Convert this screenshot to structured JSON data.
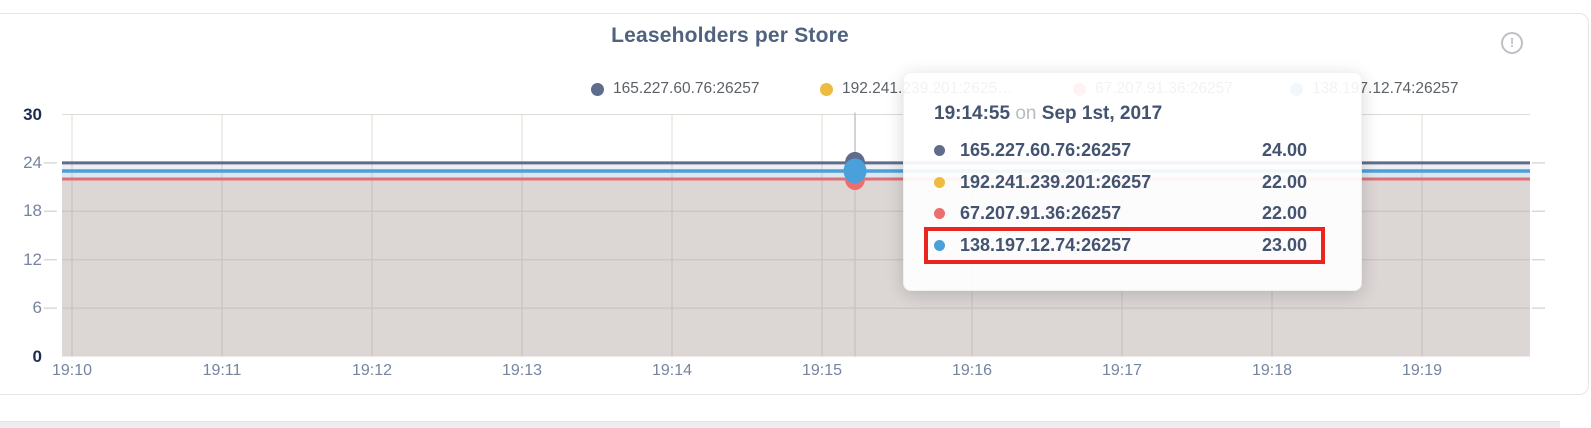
{
  "header": {
    "title": "Leaseholders per Store",
    "info_icon_glyph": "!"
  },
  "legend": {
    "items": [
      {
        "label": "165.227.60.76:26257",
        "color": "#5f6c8c"
      },
      {
        "label": "192.241.239.201:2625…",
        "color": "#eebb41"
      },
      {
        "label": "67.207.91.36:26257",
        "color": "#ee6d6d"
      },
      {
        "label": "138.197.12.74:26257",
        "color": "#4aa0da"
      }
    ]
  },
  "tooltip": {
    "time": "19:14:55",
    "separator": "on",
    "date": "Sep 1st, 2017",
    "rows": [
      {
        "label": "165.227.60.76:26257",
        "value": "24.00",
        "color": "#5f6c8c",
        "highlighted": false
      },
      {
        "label": "192.241.239.201:26257",
        "value": "22.00",
        "color": "#eebb41",
        "highlighted": false
      },
      {
        "label": "67.207.91.36:26257",
        "value": "22.00",
        "color": "#ee6d6d",
        "highlighted": false
      },
      {
        "label": "138.197.12.74:26257",
        "value": "23.00",
        "color": "#4aa0da",
        "highlighted": true
      }
    ],
    "highlight_color": "#e8251f"
  },
  "chart_data": {
    "type": "line",
    "title": "Leaseholders per Store",
    "x": [
      "19:10",
      "19:11",
      "19:12",
      "19:13",
      "19:14",
      "19:15",
      "19:16",
      "19:17",
      "19:18",
      "19:19"
    ],
    "series": [
      {
        "name": "165.227.60.76:26257",
        "color": "#5f6c8c",
        "values": [
          24,
          24,
          24,
          24,
          24,
          24,
          24,
          24,
          24,
          24
        ]
      },
      {
        "name": "192.241.239.201:26257",
        "color": "#eebb41",
        "values": [
          22,
          22,
          22,
          22,
          22,
          22,
          22,
          22,
          22,
          22
        ]
      },
      {
        "name": "67.207.91.36:26257",
        "color": "#ee6d6d",
        "values": [
          22,
          22,
          22,
          22,
          22,
          22,
          22,
          22,
          22,
          22
        ]
      },
      {
        "name": "138.197.12.74:26257",
        "color": "#4aa0da",
        "values": [
          23,
          23,
          23,
          23,
          23,
          23,
          23,
          23,
          23,
          23
        ]
      }
    ],
    "yticks": [
      0,
      6,
      12,
      18,
      24,
      30
    ],
    "ylim": [
      0,
      30
    ],
    "grid": true,
    "legend_position": "top",
    "area_fill": true,
    "hover_point": {
      "time": "19:14:55",
      "date": "Sep 1st, 2017",
      "values": {
        "165.227.60.76:26257": 24.0,
        "192.241.239.201:26257": 22.0,
        "67.207.91.36:26257": 22.0,
        "138.197.12.74:26257": 23.0
      }
    }
  }
}
